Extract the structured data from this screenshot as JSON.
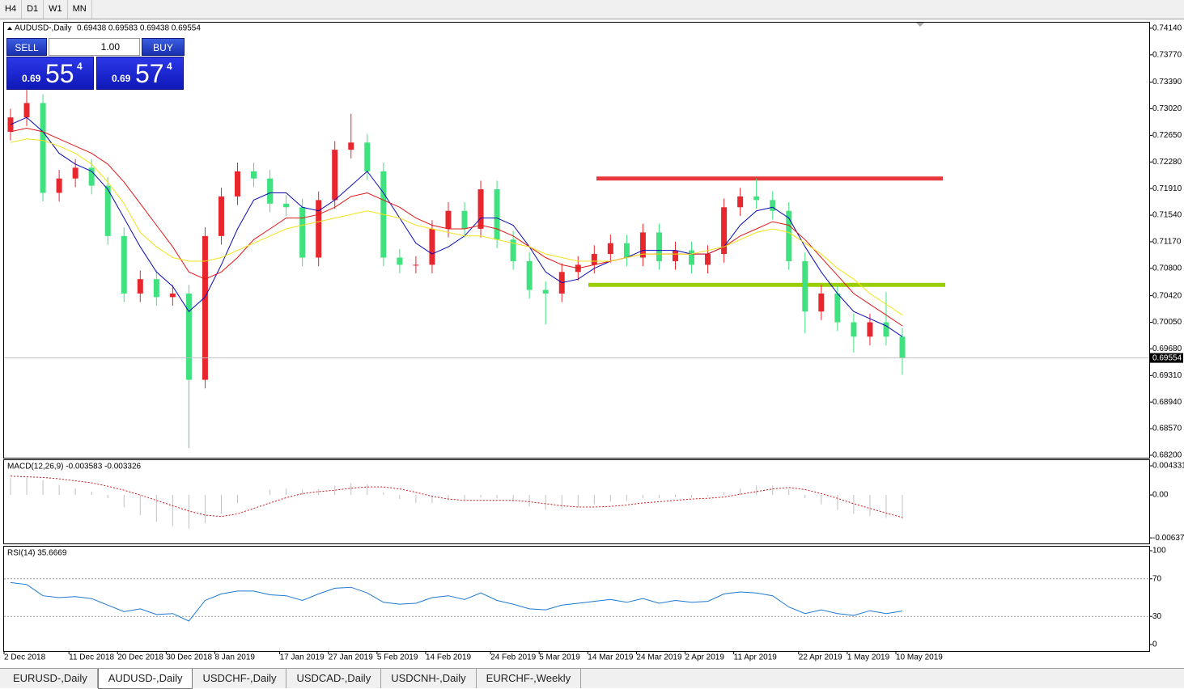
{
  "toolbar": {
    "periods": [
      "H4",
      "D1",
      "W1",
      "MN"
    ]
  },
  "tabs": [
    "EURUSD-,Daily",
    "AUDUSD-,Daily",
    "USDCHF-,Daily",
    "USDCAD-,Daily",
    "USDCNH-,Daily",
    "EURCHF-,Weekly"
  ],
  "active_tab": 1,
  "trade_panel": {
    "sell": "SELL",
    "buy": "BUY",
    "lots": "1.00",
    "bid": {
      "big": "0.69",
      "pips": "55",
      "fraction": "4"
    },
    "ask": {
      "big": "0.69",
      "pips": "57",
      "fraction": "4"
    }
  },
  "chart_data": [
    {
      "type": "candlestick",
      "title": "AUDUSD-,Daily",
      "subtitle": "0.69438 0.69583 0.69438 0.69554",
      "categories": [
        "2 Dec 2018",
        null,
        null,
        null,
        "11 Dec 2018",
        null,
        null,
        "20 Dec 2018",
        null,
        null,
        "30 Dec 2018",
        null,
        null,
        "8 Jan 2019",
        null,
        null,
        null,
        "17 Jan 2019",
        null,
        null,
        "27 Jan 2019",
        null,
        null,
        "5 Feb 2019",
        null,
        null,
        "14 Feb 2019",
        null,
        null,
        null,
        "24 Feb 2019",
        null,
        null,
        "5 Mar 2019",
        null,
        null,
        "14 Mar 2019",
        null,
        null,
        "24 Mar 2019",
        null,
        null,
        "2 Apr 2019",
        null,
        null,
        "11 Apr 2019",
        null,
        null,
        null,
        "22 Apr 2019",
        null,
        null,
        "1 May 2019",
        null,
        null,
        "10 May 2019"
      ],
      "open": [
        0.727,
        0.729,
        0.731,
        0.7185,
        0.7205,
        0.722,
        0.7195,
        0.7125,
        0.7045,
        0.7065,
        0.704,
        0.7045,
        0.6925,
        0.7125,
        0.718,
        0.7215,
        0.7205,
        0.717,
        0.7165,
        0.7095,
        0.7175,
        0.7245,
        0.7255,
        0.7215,
        0.7095,
        0.7085,
        0.7085,
        0.7135,
        0.716,
        0.7135,
        0.719,
        0.712,
        0.709,
        0.705,
        0.7045,
        0.7075,
        0.7085,
        0.71,
        0.7115,
        0.7095,
        0.713,
        0.709,
        0.7105,
        0.7085,
        0.71,
        0.7165,
        0.718,
        0.7175,
        0.716,
        0.709,
        0.702,
        0.7045,
        0.7005,
        0.6985,
        0.7005,
        0.6985
      ],
      "high": [
        0.7302,
        0.733,
        0.7322,
        0.7217,
        0.7232,
        0.7232,
        0.7207,
        0.7137,
        0.7077,
        0.7077,
        0.7057,
        0.7057,
        0.7137,
        0.7192,
        0.7227,
        0.7227,
        0.7217,
        0.7182,
        0.7177,
        0.7187,
        0.7257,
        0.7295,
        0.7267,
        0.7227,
        0.7107,
        0.7097,
        0.7147,
        0.7172,
        0.7172,
        0.7202,
        0.7202,
        0.7132,
        0.7102,
        0.7062,
        0.7087,
        0.7097,
        0.7112,
        0.7127,
        0.7127,
        0.7142,
        0.7142,
        0.7117,
        0.7117,
        0.7112,
        0.7177,
        0.7192,
        0.7205,
        0.7187,
        0.7172,
        0.7102,
        0.7057,
        0.7057,
        0.7017,
        0.7017,
        0.7047,
        0.6997
      ],
      "low": [
        0.7258,
        0.7278,
        0.7173,
        0.7173,
        0.7193,
        0.7183,
        0.7113,
        0.7033,
        0.7033,
        0.7028,
        0.7028,
        0.683,
        0.6913,
        0.7113,
        0.7168,
        0.7193,
        0.7158,
        0.7153,
        0.7083,
        0.7083,
        0.7163,
        0.7233,
        0.7203,
        0.7083,
        0.7073,
        0.7073,
        0.7073,
        0.7123,
        0.7123,
        0.7123,
        0.7108,
        0.7078,
        0.7038,
        0.7002,
        0.7033,
        0.7063,
        0.7073,
        0.7088,
        0.7083,
        0.7083,
        0.7078,
        0.7078,
        0.7073,
        0.7073,
        0.7088,
        0.7153,
        0.7163,
        0.7148,
        0.7078,
        0.699,
        0.7008,
        0.6993,
        0.6963,
        0.6973,
        0.6973,
        0.6932
      ],
      "close": [
        0.729,
        0.731,
        0.7185,
        0.7205,
        0.722,
        0.7195,
        0.7125,
        0.7045,
        0.7065,
        0.704,
        0.7045,
        0.6925,
        0.7125,
        0.718,
        0.7215,
        0.7205,
        0.717,
        0.7165,
        0.7095,
        0.7175,
        0.7245,
        0.7255,
        0.7215,
        0.7095,
        0.7085,
        0.7085,
        0.7135,
        0.716,
        0.7135,
        0.719,
        0.712,
        0.709,
        0.705,
        0.7045,
        0.7075,
        0.7085,
        0.71,
        0.7115,
        0.7095,
        0.713,
        0.709,
        0.7105,
        0.7085,
        0.71,
        0.7165,
        0.718,
        0.7175,
        0.716,
        0.709,
        0.702,
        0.7045,
        0.7005,
        0.6985,
        0.7005,
        0.6985,
        0.6955
      ],
      "up_color": "#e8262d",
      "down_color": "#3fe27e",
      "lines": [
        {
          "color": "#0a0ab4",
          "values": [
            0.728,
            0.729,
            0.727,
            0.724,
            0.7225,
            0.7215,
            0.719,
            0.715,
            0.711,
            0.7075,
            0.7055,
            0.702,
            0.704,
            0.7085,
            0.7135,
            0.7175,
            0.7185,
            0.7185,
            0.7165,
            0.716,
            0.7175,
            0.7195,
            0.7215,
            0.7185,
            0.715,
            0.7115,
            0.71,
            0.711,
            0.7125,
            0.715,
            0.715,
            0.714,
            0.711,
            0.7075,
            0.706,
            0.7065,
            0.708,
            0.709,
            0.7095,
            0.7105,
            0.7105,
            0.7105,
            0.71,
            0.71,
            0.711,
            0.714,
            0.716,
            0.7165,
            0.715,
            0.711,
            0.7075,
            0.7045,
            0.702,
            0.701,
            0.7,
            0.6985
          ]
        },
        {
          "color": "#e01818",
          "values": [
            0.727,
            0.7275,
            0.727,
            0.726,
            0.725,
            0.724,
            0.7225,
            0.72,
            0.717,
            0.714,
            0.711,
            0.7075,
            0.7065,
            0.7075,
            0.7095,
            0.712,
            0.7135,
            0.715,
            0.715,
            0.7155,
            0.7165,
            0.718,
            0.7185,
            0.7175,
            0.7165,
            0.715,
            0.714,
            0.7135,
            0.7135,
            0.714,
            0.7135,
            0.7125,
            0.711,
            0.7095,
            0.7085,
            0.708,
            0.7085,
            0.709,
            0.7095,
            0.71,
            0.71,
            0.71,
            0.71,
            0.71,
            0.711,
            0.7125,
            0.7135,
            0.7145,
            0.714,
            0.712,
            0.7095,
            0.707,
            0.7045,
            0.703,
            0.7015,
            0.7
          ]
        },
        {
          "color": "#f2e21a",
          "values": [
            0.7255,
            0.726,
            0.7258,
            0.725,
            0.724,
            0.7225,
            0.72,
            0.717,
            0.713,
            0.711,
            0.7095,
            0.709,
            0.709,
            0.7095,
            0.7105,
            0.7115,
            0.7125,
            0.7135,
            0.714,
            0.7145,
            0.715,
            0.7155,
            0.716,
            0.7155,
            0.715,
            0.714,
            0.7135,
            0.713,
            0.7125,
            0.7125,
            0.712,
            0.7115,
            0.711,
            0.71,
            0.7095,
            0.709,
            0.709,
            0.709,
            0.7095,
            0.71,
            0.71,
            0.71,
            0.71,
            0.7105,
            0.711,
            0.712,
            0.713,
            0.7135,
            0.713,
            0.7115,
            0.71,
            0.708,
            0.7065,
            0.7045,
            0.703,
            0.7015
          ]
        }
      ],
      "levels": [
        {
          "value": 0.7205,
          "color": "#e8383d"
        },
        {
          "value": 0.7057,
          "color": "#9acd00"
        }
      ],
      "current_price": {
        "value": 0.69554,
        "label": "0.69554"
      },
      "ylim": [
        0.68166,
        0.74218
      ],
      "yticks": [
        {
          "value": 0.7414,
          "label": "0.74140"
        },
        {
          "value": 0.7377,
          "label": "0.73770"
        },
        {
          "value": 0.7339,
          "label": "0.73390"
        },
        {
          "value": 0.7302,
          "label": "0.73020"
        },
        {
          "value": 0.7265,
          "label": "0.72650"
        },
        {
          "value": 0.7228,
          "label": "0.72280"
        },
        {
          "value": 0.7191,
          "label": "0.71910"
        },
        {
          "value": 0.7154,
          "label": "0.71540"
        },
        {
          "value": 0.7117,
          "label": "0.71170"
        },
        {
          "value": 0.708,
          "label": "0.70800"
        },
        {
          "value": 0.7042,
          "label": "0.70420"
        },
        {
          "value": 0.7005,
          "label": "0.70050"
        },
        {
          "value": 0.6968,
          "label": "0.69680"
        },
        {
          "value": 0.6931,
          "label": "0.69310"
        },
        {
          "value": 0.6894,
          "label": "0.68940"
        },
        {
          "value": 0.6857,
          "label": "0.68570"
        },
        {
          "value": 0.682,
          "label": "0.68200"
        }
      ]
    },
    {
      "type": "macd",
      "title": "MACD(12,26,9) -0.003583 -0.003326",
      "values": [
        0.0025,
        0.0026,
        0.0022,
        0.0015,
        0.001,
        0.0005,
        -0.0005,
        -0.0018,
        -0.003,
        -0.004,
        -0.0046,
        -0.005,
        -0.0042,
        -0.0028,
        -0.0012,
        0.0,
        0.0008,
        0.001,
        0.0008,
        0.0009,
        0.0014,
        0.0018,
        0.0016,
        0.0004,
        -0.0006,
        -0.0012,
        -0.0012,
        -0.0008,
        -0.0007,
        -0.0004,
        -0.0005,
        -0.001,
        -0.0017,
        -0.0022,
        -0.0021,
        -0.0018,
        -0.0014,
        -0.001,
        -0.0009,
        -0.0005,
        -0.0005,
        -0.0003,
        -0.0004,
        -0.0002,
        0.0004,
        0.001,
        0.0014,
        0.0014,
        0.0008,
        -0.0005,
        -0.0014,
        -0.0022,
        -0.0028,
        -0.0031,
        -0.0034,
        -0.003583
      ],
      "color": "#c0c0c0",
      "signal": [
        0.0028,
        0.0027,
        0.0026,
        0.0024,
        0.0021,
        0.0018,
        0.0013,
        0.0007,
        0.0,
        -0.0008,
        -0.0016,
        -0.0024,
        -0.003,
        -0.0032,
        -0.0028,
        -0.002,
        -0.0012,
        -0.0004,
        0.0002,
        0.0005,
        0.0007,
        0.001,
        0.0012,
        0.0012,
        0.0009,
        0.0004,
        -0.0002,
        -0.0006,
        -0.0008,
        -0.0008,
        -0.0008,
        -0.0008,
        -0.001,
        -0.0013,
        -0.0016,
        -0.0018,
        -0.0018,
        -0.0017,
        -0.0015,
        -0.0012,
        -0.001,
        -0.0008,
        -0.0006,
        -0.0005,
        -0.0003,
        0.0001,
        0.0005,
        0.0009,
        0.0011,
        0.0008,
        0.0002,
        -0.0005,
        -0.0013,
        -0.002,
        -0.0027,
        -0.003326
      ],
      "signal_color": "#d01818",
      "ylim": [
        -0.007199,
        0.005171
      ],
      "yticks": [
        0.004331,
        {
          "value": 0,
          "label": "0.00"
        },
        -0.006373
      ]
    },
    {
      "type": "line",
      "title": "RSI(14) 35.6669",
      "values": [
        66,
        64,
        52,
        50,
        51,
        49,
        42,
        35,
        38,
        32,
        33,
        25,
        47,
        54,
        57,
        57,
        53,
        52,
        47,
        54,
        60,
        61,
        55,
        45,
        43,
        44,
        50,
        52,
        48,
        55,
        47,
        43,
        38,
        37,
        42,
        44,
        46,
        48,
        45,
        49,
        44,
        47,
        45,
        46,
        54,
        56,
        55,
        52,
        40,
        33,
        37,
        33,
        31,
        36,
        33,
        35.6669
      ],
      "color": "#1e78d2",
      "ylim": [
        -6.9,
        104.3
      ],
      "yticks": [
        100,
        70,
        30,
        0
      ]
    }
  ]
}
